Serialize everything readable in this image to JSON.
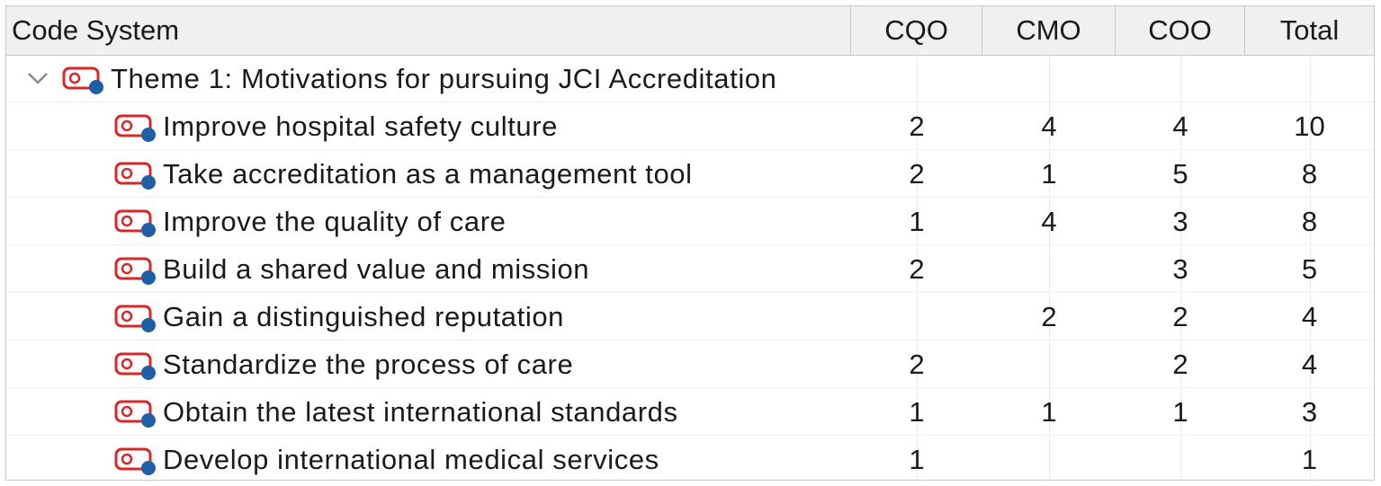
{
  "table": {
    "columns": {
      "code_system": "Code System",
      "cqo": "CQO",
      "cmo": "CMO",
      "coo": "COO",
      "total": "Total"
    },
    "theme": {
      "label": "Theme 1: Motivations for pursuing JCI Accreditation",
      "expanded": true
    },
    "rows": [
      {
        "label": "Improve hospital safety culture",
        "cqo": "2",
        "cmo": "4",
        "coo": "4",
        "total": "10"
      },
      {
        "label": "Take accreditation as a management tool",
        "cqo": "2",
        "cmo": "1",
        "coo": "5",
        "total": "8"
      },
      {
        "label": "Improve the quality of care",
        "cqo": "1",
        "cmo": "4",
        "coo": "3",
        "total": "8"
      },
      {
        "label": "Build a shared value and mission",
        "cqo": "2",
        "cmo": "",
        "coo": "3",
        "total": "5"
      },
      {
        "label": "Gain a distinguished reputation",
        "cqo": "",
        "cmo": "2",
        "coo": "2",
        "total": "4"
      },
      {
        "label": "Standardize the process of care",
        "cqo": "2",
        "cmo": "",
        "coo": "2",
        "total": "4"
      },
      {
        "label": "Obtain the latest international standards",
        "cqo": "1",
        "cmo": "1",
        "coo": "1",
        "total": "3"
      },
      {
        "label": "Develop international medical services",
        "cqo": "1",
        "cmo": "",
        "coo": "",
        "total": "1"
      }
    ]
  },
  "colors": {
    "code_icon_red": "#d62828",
    "code_icon_dot": "#1f5fa8",
    "header_bg": "#f0f0f0",
    "grid": "#c8c8c8"
  },
  "icons": {
    "expand": "chevron-down-icon",
    "code": "code-tag-icon"
  }
}
